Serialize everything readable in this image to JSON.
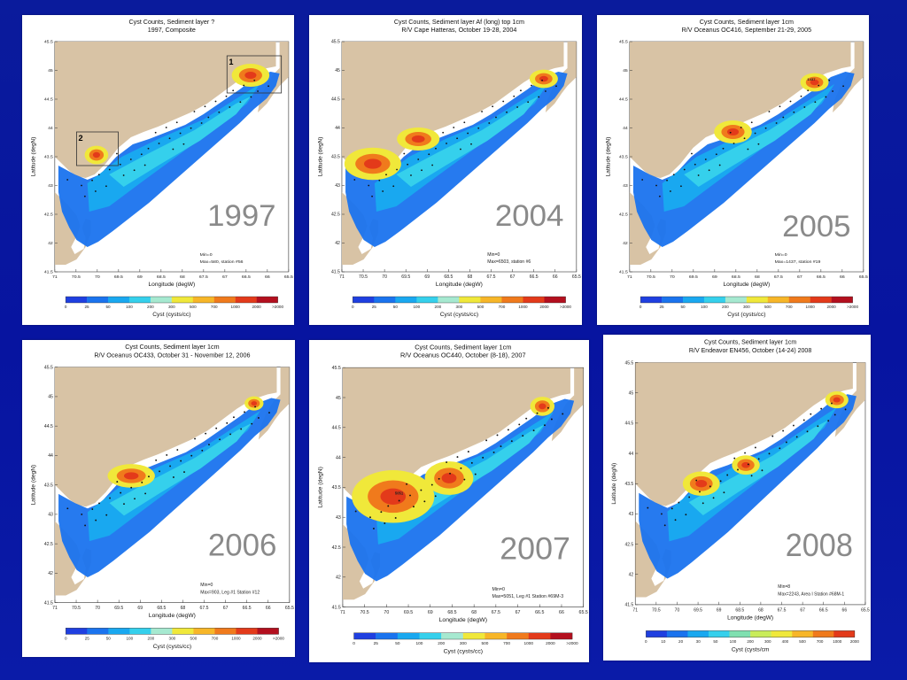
{
  "colorbar": {
    "colors": [
      "#1f3fe0",
      "#1a73ee",
      "#19a8f0",
      "#35d0ec",
      "#a6e9d0",
      "#f0e83a",
      "#f7b628",
      "#f07a1c",
      "#e33a1a",
      "#b30f1e"
    ],
    "tick_labels": [
      "0",
      "25",
      "50",
      "100",
      "200",
      "300",
      "500",
      "700",
      "1000",
      "2000",
      ">2000"
    ],
    "label": "Cyst (cysts/cc)"
  },
  "colorbar_2008": {
    "colors": [
      "#1f3fe0",
      "#1a73ee",
      "#19a8f0",
      "#35d0ec",
      "#7fe0b0",
      "#c9ec5a",
      "#f0e83a",
      "#f7b628",
      "#f07a1c",
      "#e33a1a"
    ],
    "tick_labels": [
      "0",
      "10",
      "20",
      "30",
      "50",
      "100",
      "200",
      "300",
      "400",
      "500",
      "700",
      "1000",
      "2000"
    ],
    "label": "Cyst (cysts/cm"
  },
  "axes": {
    "xlabel": "Longitude (degW)",
    "ylabel": "Latitude (degN)",
    "x_ticks": [
      "71",
      "70.5",
      "70",
      "69.5",
      "69",
      "68.5",
      "68",
      "67.5",
      "67",
      "66.5",
      "66",
      "65.5"
    ],
    "y_ticks": [
      "45.5",
      "45",
      "44.5",
      "44",
      "43.5",
      "43",
      "42.5",
      "42",
      "41.5"
    ]
  },
  "chart_data": [
    {
      "type": "heatmap",
      "title": "Cyst Counts, Sediment layer ?",
      "subtitle": "1997, Composite",
      "year": "1997",
      "min_text": "Min=0",
      "max_text": "Max=580, station #56",
      "box_labels": [
        "1",
        "2"
      ],
      "xlim": [
        71,
        65.5
      ],
      "ylim": [
        41.5,
        45.5
      ]
    },
    {
      "type": "heatmap",
      "title": "Cyst Counts, Sediment layer Af (long) top 1cm",
      "subtitle": "R/V Cape Hatteras, October 19-28, 2004",
      "year": "2004",
      "min_text": "Min=0",
      "max_text": "Max=6503, station #6",
      "xlim": [
        71,
        65.5
      ],
      "ylim": [
        41.5,
        45.5
      ]
    },
    {
      "type": "heatmap",
      "title": "Cyst Counts, Sediment layer 1cm",
      "subtitle": "R/V Oceanus OC416, September 21-29, 2005",
      "year": "2005",
      "min_text": "Min=0",
      "max_text": "Max=1437, station #19",
      "max_label": "1437",
      "xlim": [
        71,
        65.5
      ],
      "ylim": [
        41.5,
        45.5
      ]
    },
    {
      "type": "heatmap",
      "title": "Cyst Counts, Sediment layer 1cm",
      "subtitle": "R/V Oceanus OC433, October 31 - November 12, 2006",
      "year": "2006",
      "min_text": "Min=0",
      "max_text": "Max=903, Leg #1 Station #12",
      "xlim": [
        71,
        65.5
      ],
      "ylim": [
        41.5,
        45.5
      ]
    },
    {
      "type": "heatmap",
      "title": "Cyst Counts, Sediment layer 1cm",
      "subtitle": "R/V Oceanus OC440, October (8-18), 2007",
      "year": "2007",
      "min_text": "Min=0",
      "max_text": "Max=5051, Leg #1 Station #69M-3",
      "max_label": "5051",
      "xlim": [
        71,
        65.5
      ],
      "ylim": [
        41.5,
        45.5
      ]
    },
    {
      "type": "heatmap",
      "title": "Cyst Counts, Sediment layer 1cm",
      "subtitle": "R/V Endeavor EN456, October (14-24) 2008",
      "year": "2008",
      "min_text": "Min=8",
      "max_text": "Max=2243, Area I Station #68M-1",
      "xlim": [
        71,
        65.5
      ],
      "ylim": [
        41.5,
        45.5
      ]
    }
  ]
}
